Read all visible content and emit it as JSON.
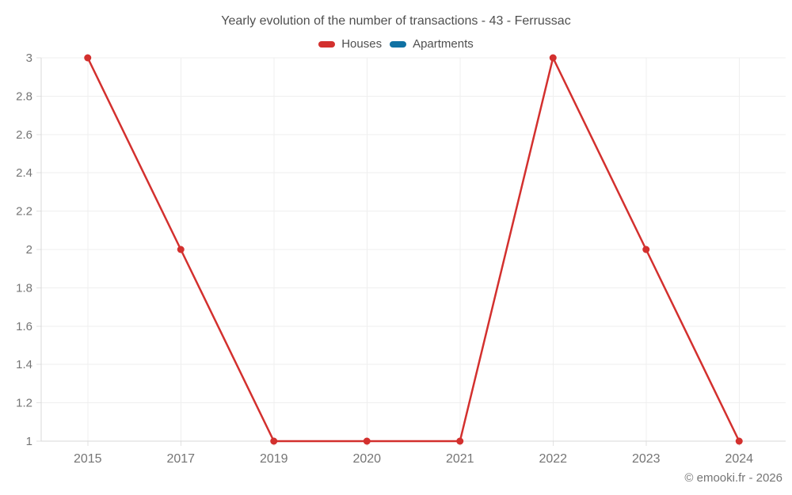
{
  "header": {
    "title": "Yearly evolution of the number of transactions - 43 - Ferrussac"
  },
  "footer": {
    "copyright": "© emooki.fr - 2026"
  },
  "chart_data": {
    "type": "line",
    "title": "Yearly evolution of the number of transactions - 43 - Ferrussac",
    "categories": [
      "2015",
      "2017",
      "2019",
      "2020",
      "2021",
      "2022",
      "2023",
      "2024"
    ],
    "series": [
      {
        "name": "Houses",
        "color": "#d3302e",
        "values": [
          3,
          2,
          1,
          1,
          1,
          3,
          2,
          1
        ]
      },
      {
        "name": "Apartments",
        "color": "#1071a3",
        "values": []
      }
    ],
    "xlabel": "",
    "ylabel": "",
    "ylim": [
      1,
      3
    ],
    "y_ticks": [
      "1",
      "1.2",
      "1.4",
      "1.6",
      "1.8",
      "2",
      "2.2",
      "2.4",
      "2.6",
      "2.8",
      "3"
    ],
    "grid": true,
    "legend_position": "top"
  }
}
